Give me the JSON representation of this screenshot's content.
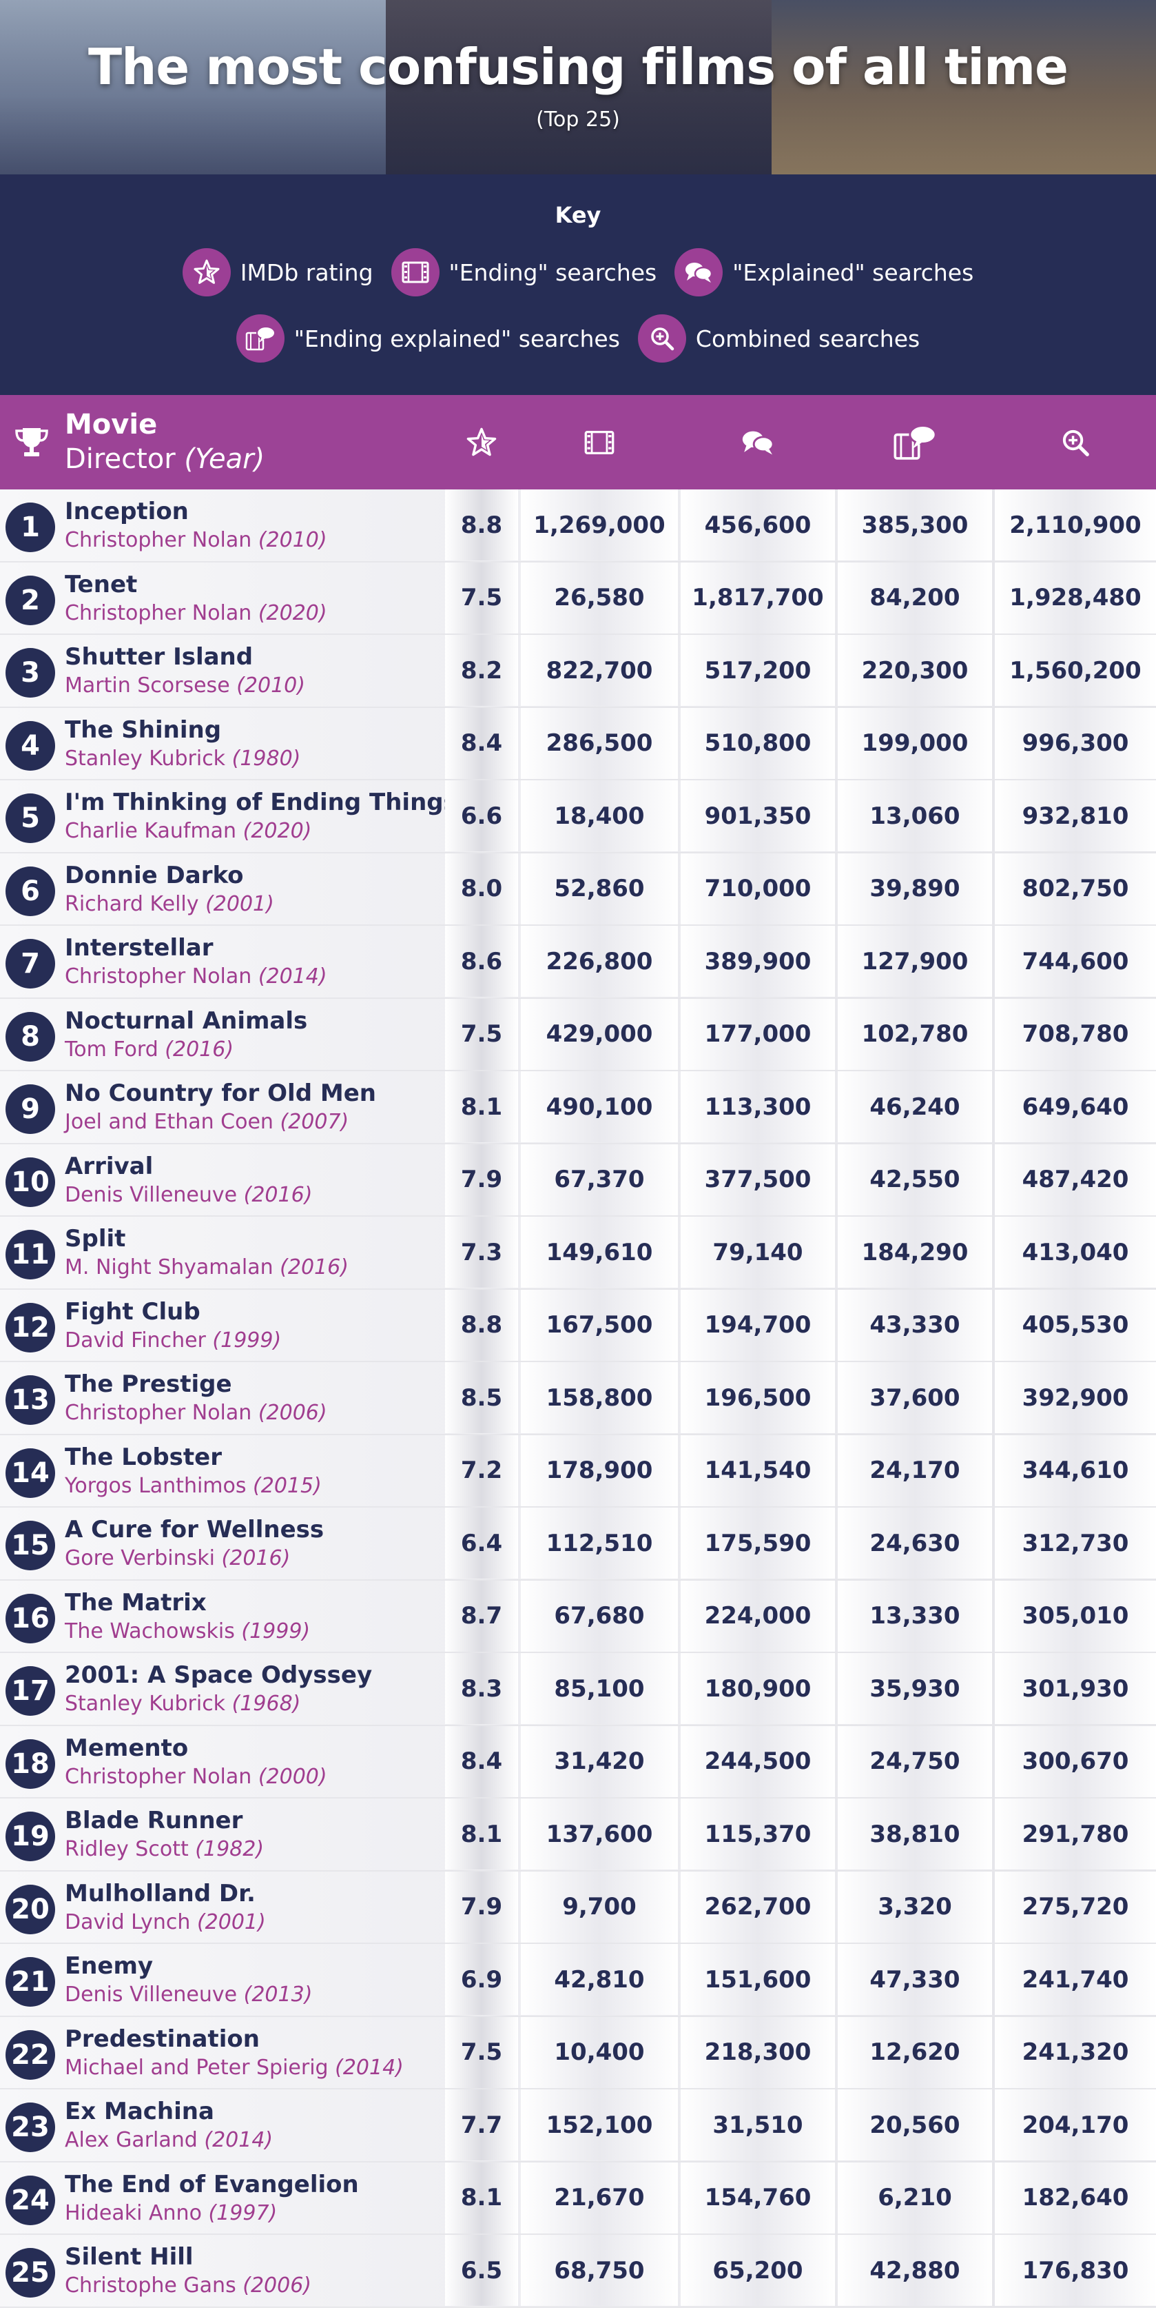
{
  "header": {
    "title": "The most confusing films of all time",
    "subtitle": "(Top 25)"
  },
  "key": {
    "title": "Key",
    "items": [
      {
        "icon": "star-icon",
        "label": "IMDb rating"
      },
      {
        "icon": "film-icon",
        "label": "\"Ending\" searches"
      },
      {
        "icon": "chat-bubbles-icon",
        "label": "\"Explained\" searches"
      },
      {
        "icon": "film-chat-icon",
        "label": "\"Ending explained\" searches"
      },
      {
        "icon": "magnifier-plus-icon",
        "label": "Combined searches"
      }
    ]
  },
  "table": {
    "col_movie": "Movie",
    "col_director": "Director",
    "col_year": "(Year)"
  },
  "colors": {
    "navy": "#262d55",
    "purple": "#9c4396",
    "director_text": "#a03d8f"
  },
  "chart_data": {
    "type": "table",
    "title": "The most confusing films of all time",
    "subtitle": "(Top 25)",
    "columns": [
      "Movie",
      "Director (Year)",
      "IMDb rating",
      "\"Ending\" searches",
      "\"Explained\" searches",
      "\"Ending explained\" searches",
      "Combined searches"
    ],
    "rows": [
      {
        "rank": "1",
        "movie": "Inception",
        "director": "Christopher Nolan",
        "year": "(2010)",
        "rating": "8.8",
        "ending": "1,269,000",
        "explained": "456,600",
        "ending_explained": "385,300",
        "combined": "2,110,900"
      },
      {
        "rank": "2",
        "movie": "Tenet",
        "director": "Christopher Nolan",
        "year": "(2020)",
        "rating": "7.5",
        "ending": "26,580",
        "explained": "1,817,700",
        "ending_explained": "84,200",
        "combined": "1,928,480"
      },
      {
        "rank": "3",
        "movie": "Shutter Island",
        "director": "Martin Scorsese",
        "year": "(2010)",
        "rating": "8.2",
        "ending": "822,700",
        "explained": "517,200",
        "ending_explained": "220,300",
        "combined": "1,560,200"
      },
      {
        "rank": "4",
        "movie": "The Shining",
        "director": "Stanley Kubrick",
        "year": "(1980)",
        "rating": "8.4",
        "ending": "286,500",
        "explained": "510,800",
        "ending_explained": "199,000",
        "combined": "996,300"
      },
      {
        "rank": "5",
        "movie": "I'm Thinking of Ending Things",
        "director": "Charlie Kaufman",
        "year": "(2020)",
        "rating": "6.6",
        "ending": "18,400",
        "explained": "901,350",
        "ending_explained": "13,060",
        "combined": "932,810"
      },
      {
        "rank": "6",
        "movie": "Donnie Darko",
        "director": "Richard Kelly",
        "year": "(2001)",
        "rating": "8.0",
        "ending": "52,860",
        "explained": "710,000",
        "ending_explained": "39,890",
        "combined": "802,750"
      },
      {
        "rank": "7",
        "movie": "Interstellar",
        "director": "Christopher Nolan",
        "year": "(2014)",
        "rating": "8.6",
        "ending": "226,800",
        "explained": "389,900",
        "ending_explained": "127,900",
        "combined": "744,600"
      },
      {
        "rank": "8",
        "movie": "Nocturnal Animals",
        "director": "Tom Ford",
        "year": "(2016)",
        "rating": "7.5",
        "ending": "429,000",
        "explained": "177,000",
        "ending_explained": "102,780",
        "combined": "708,780"
      },
      {
        "rank": "9",
        "movie": "No Country for Old Men",
        "director": "Joel and Ethan Coen",
        "year": "(2007)",
        "rating": "8.1",
        "ending": "490,100",
        "explained": "113,300",
        "ending_explained": "46,240",
        "combined": "649,640"
      },
      {
        "rank": "10",
        "movie": "Arrival",
        "director": "Denis Villeneuve",
        "year": "(2016)",
        "rating": "7.9",
        "ending": "67,370",
        "explained": "377,500",
        "ending_explained": "42,550",
        "combined": "487,420"
      },
      {
        "rank": "11",
        "movie": "Split",
        "director": "M. Night Shyamalan",
        "year": "(2016)",
        "rating": "7.3",
        "ending": "149,610",
        "explained": "79,140",
        "ending_explained": "184,290",
        "combined": "413,040"
      },
      {
        "rank": "12",
        "movie": "Fight Club",
        "director": "David Fincher",
        "year": "(1999)",
        "rating": "8.8",
        "ending": "167,500",
        "explained": "194,700",
        "ending_explained": "43,330",
        "combined": "405,530"
      },
      {
        "rank": "13",
        "movie": "The Prestige",
        "director": "Christopher Nolan",
        "year": "(2006)",
        "rating": "8.5",
        "ending": "158,800",
        "explained": "196,500",
        "ending_explained": "37,600",
        "combined": "392,900"
      },
      {
        "rank": "14",
        "movie": "The Lobster",
        "director": "Yorgos Lanthimos",
        "year": "(2015)",
        "rating": "7.2",
        "ending": "178,900",
        "explained": "141,540",
        "ending_explained": "24,170",
        "combined": "344,610"
      },
      {
        "rank": "15",
        "movie": "A Cure for Wellness",
        "director": "Gore Verbinski",
        "year": "(2016)",
        "rating": "6.4",
        "ending": "112,510",
        "explained": "175,590",
        "ending_explained": "24,630",
        "combined": "312,730"
      },
      {
        "rank": "16",
        "movie": "The Matrix",
        "director": "The Wachowskis",
        "year": "(1999)",
        "rating": "8.7",
        "ending": "67,680",
        "explained": "224,000",
        "ending_explained": "13,330",
        "combined": "305,010"
      },
      {
        "rank": "17",
        "movie": "2001: A Space Odyssey",
        "director": "Stanley Kubrick",
        "year": "(1968)",
        "rating": "8.3",
        "ending": "85,100",
        "explained": "180,900",
        "ending_explained": "35,930",
        "combined": "301,930"
      },
      {
        "rank": "18",
        "movie": "Memento",
        "director": "Christopher Nolan",
        "year": "(2000)",
        "rating": "8.4",
        "ending": "31,420",
        "explained": "244,500",
        "ending_explained": "24,750",
        "combined": "300,670"
      },
      {
        "rank": "19",
        "movie": "Blade Runner",
        "director": "Ridley Scott",
        "year": "(1982)",
        "rating": "8.1",
        "ending": "137,600",
        "explained": "115,370",
        "ending_explained": "38,810",
        "combined": "291,780"
      },
      {
        "rank": "20",
        "movie": "Mulholland Dr.",
        "director": "David Lynch",
        "year": "(2001)",
        "rating": "7.9",
        "ending": "9,700",
        "explained": "262,700",
        "ending_explained": "3,320",
        "combined": "275,720"
      },
      {
        "rank": "21",
        "movie": "Enemy",
        "director": "Denis Villeneuve",
        "year": "(2013)",
        "rating": "6.9",
        "ending": "42,810",
        "explained": "151,600",
        "ending_explained": "47,330",
        "combined": "241,740"
      },
      {
        "rank": "22",
        "movie": "Predestination",
        "director": "Michael and Peter Spierig",
        "year": "(2014)",
        "rating": "7.5",
        "ending": "10,400",
        "explained": "218,300",
        "ending_explained": "12,620",
        "combined": "241,320"
      },
      {
        "rank": "23",
        "movie": "Ex Machina",
        "director": "Alex Garland",
        "year": "(2014)",
        "rating": "7.7",
        "ending": "152,100",
        "explained": "31,510",
        "ending_explained": "20,560",
        "combined": "204,170"
      },
      {
        "rank": "24",
        "movie": "The End of Evangelion",
        "director": "Hideaki Anno",
        "year": "(1997)",
        "rating": "8.1",
        "ending": "21,670",
        "explained": "154,760",
        "ending_explained": "6,210",
        "combined": "182,640"
      },
      {
        "rank": "25",
        "movie": "Silent Hill",
        "director": "Christophe Gans",
        "year": "(2006)",
        "rating": "6.5",
        "ending": "68,750",
        "explained": "65,200",
        "ending_explained": "42,880",
        "combined": "176,830"
      }
    ]
  }
}
